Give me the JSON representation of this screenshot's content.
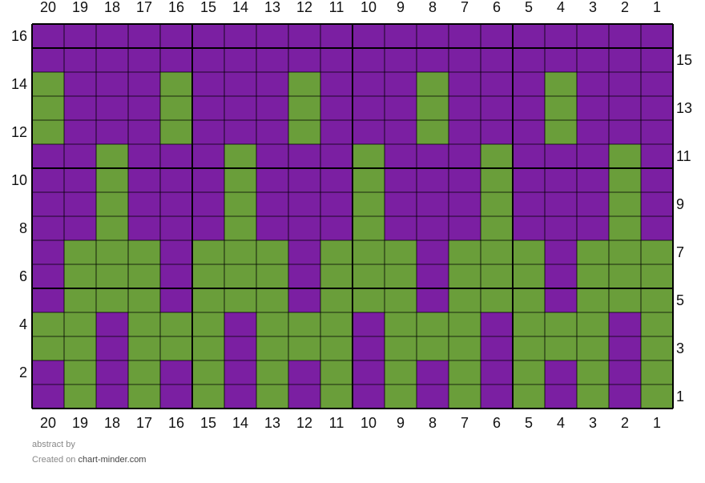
{
  "columns": [
    20,
    19,
    18,
    17,
    16,
    15,
    14,
    13,
    12,
    11,
    10,
    9,
    8,
    7,
    6,
    5,
    4,
    3,
    2,
    1
  ],
  "colors": {
    "P": "#7b1fa2",
    "G": "#6a9e3a"
  },
  "rows": [
    {
      "number": 16,
      "cells": "PPPPPPPPPPPPPPPPPPPP"
    },
    {
      "number": 15,
      "cells": "PPPPPPPPPPPPPPPPPPPP"
    },
    {
      "number": 14,
      "cells": "GPPPGPPPGPPPGPPPGPPP"
    },
    {
      "number": 13,
      "cells": "GPPPGPPPGPPPGPPPGPPP"
    },
    {
      "number": 12,
      "cells": "GPPPGPPPGPPPGPPPGPPP"
    },
    {
      "number": 11,
      "cells": "PPGPPPGPPPGPPPGPPPGP"
    },
    {
      "number": 10,
      "cells": "PPGPPPGPPPGPPPGPPPGP"
    },
    {
      "number": 9,
      "cells": "PPGPPPGPPPGPPPGPPPGP"
    },
    {
      "number": 8,
      "cells": "PPGPPPGPPPGPPPGPPPGP"
    },
    {
      "number": 7,
      "cells": "PGGGPGGGPGGGPGGGPGGG"
    },
    {
      "number": 6,
      "cells": "PGGGPGGGPGGGPGGGPGGG"
    },
    {
      "number": 5,
      "cells": "PGGGPGGGPGGGPGGGPGGG"
    },
    {
      "number": 4,
      "cells": "GGPGGGPGGGPGGGPGGGPG"
    },
    {
      "number": 3,
      "cells": "GGPGGGPGGGPGGGPGGGPG"
    },
    {
      "number": 2,
      "cells": "PGPGPGPGPGPGPGPGPGPG"
    },
    {
      "number": 1,
      "cells": "PGPGPGPGPGPGPGPGPGPG"
    }
  ],
  "footer": {
    "title": "abstract",
    "by": "by",
    "created_on": "Created on",
    "site": "chart-minder.com"
  }
}
